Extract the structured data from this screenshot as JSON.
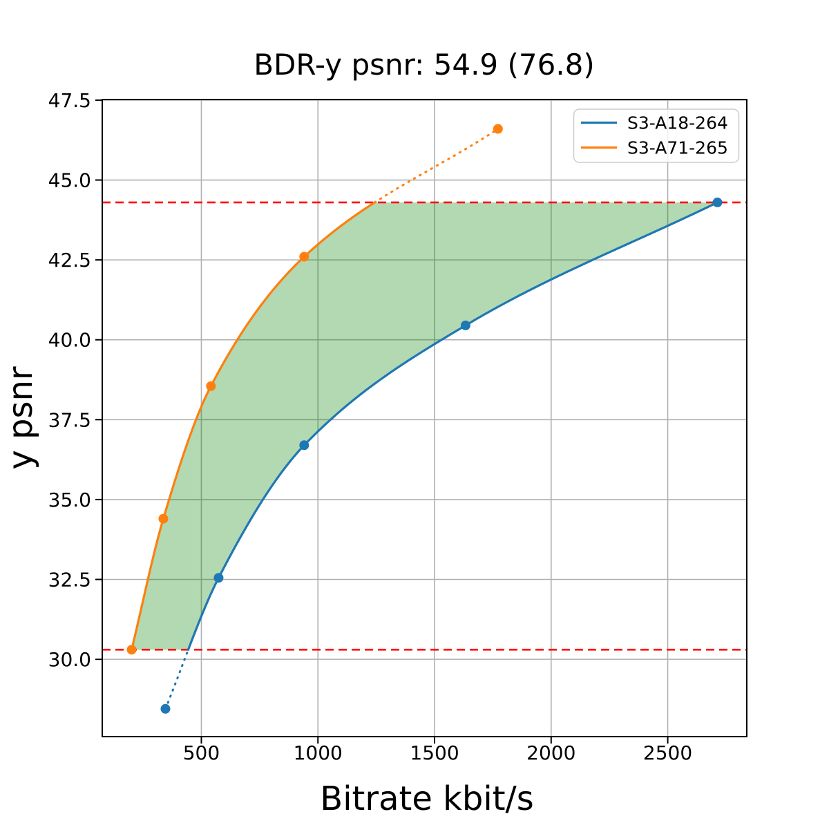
{
  "chart_data": {
    "type": "line",
    "title": "BDR-y psnr: 54.9 (76.8)",
    "xlabel": "Bitrate kbit/s",
    "ylabel": "y psnr",
    "xlim": [
      75,
      2839
    ],
    "ylim": [
      27.58,
      47.52
    ],
    "grid": true,
    "grid_color": "#b0b0b0",
    "background_color": "#ffffff",
    "legend_position": "upper right",
    "xticks": {
      "values": [
        500,
        1000,
        1500,
        2000,
        2500
      ],
      "labels": [
        "500",
        "1000",
        "1500",
        "2000",
        "2500"
      ]
    },
    "yticks": {
      "values": [
        30.0,
        32.5,
        35.0,
        37.5,
        40.0,
        42.5,
        45.0,
        47.5
      ],
      "labels": [
        "30.0",
        "32.5",
        "35.0",
        "37.5",
        "40.0",
        "42.5",
        "45.0",
        "47.5"
      ]
    },
    "series": [
      {
        "name": "S3-A18-264",
        "color": "#1f77b4",
        "x": [
          346,
          574,
          941,
          1633,
          2713
        ],
        "y": [
          28.45,
          32.55,
          36.7,
          40.45,
          44.3
        ],
        "extrapolated": "below"
      },
      {
        "name": "S3-A71-265",
        "color": "#ff7f0e",
        "x": [
          201,
          337,
          541,
          941,
          1772
        ],
        "y": [
          30.3,
          34.4,
          38.55,
          42.6,
          46.6
        ],
        "extrapolated": "above"
      }
    ],
    "hlines": [
      {
        "y": 44.3,
        "color": "#ff0000",
        "style": "dashed"
      },
      {
        "y": 30.3,
        "color": "#ff0000",
        "style": "dashed"
      }
    ],
    "shaded_region": {
      "between": "series curves from psnr 30.3 to 44.3",
      "color": "#008000",
      "opacity": 0.3
    }
  }
}
